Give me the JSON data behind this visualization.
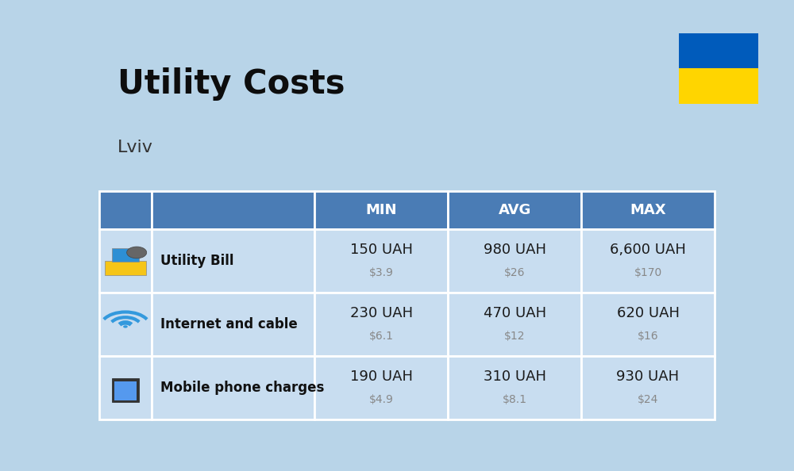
{
  "title": "Utility Costs",
  "subtitle": "Lviv",
  "background_color": "#b8d4e8",
  "header_bg_color": "#4a7cb5",
  "header_text_color": "#ffffff",
  "row_bg_color": "#c8ddf0",
  "divider_color": "#ffffff",
  "col_headers": [
    "MIN",
    "AVG",
    "MAX"
  ],
  "rows": [
    {
      "label": "Utility Bill",
      "uah_values": [
        "150 UAH",
        "980 UAH",
        "6,600 UAH"
      ],
      "usd_values": [
        "$3.9",
        "$26",
        "$170"
      ]
    },
    {
      "label": "Internet and cable",
      "uah_values": [
        "230 UAH",
        "470 UAH",
        "620 UAH"
      ],
      "usd_values": [
        "$6.1",
        "$12",
        "$16"
      ]
    },
    {
      "label": "Mobile phone charges",
      "uah_values": [
        "190 UAH",
        "310 UAH",
        "930 UAH"
      ],
      "usd_values": [
        "$4.9",
        "$8.1",
        "$24"
      ]
    }
  ],
  "flag_blue": "#005BBB",
  "flag_yellow": "#FFD500",
  "title_color": "#0d0d0d",
  "subtitle_color": "#333333",
  "label_color": "#111111",
  "uah_color": "#1a1a1a",
  "usd_color": "#888888"
}
